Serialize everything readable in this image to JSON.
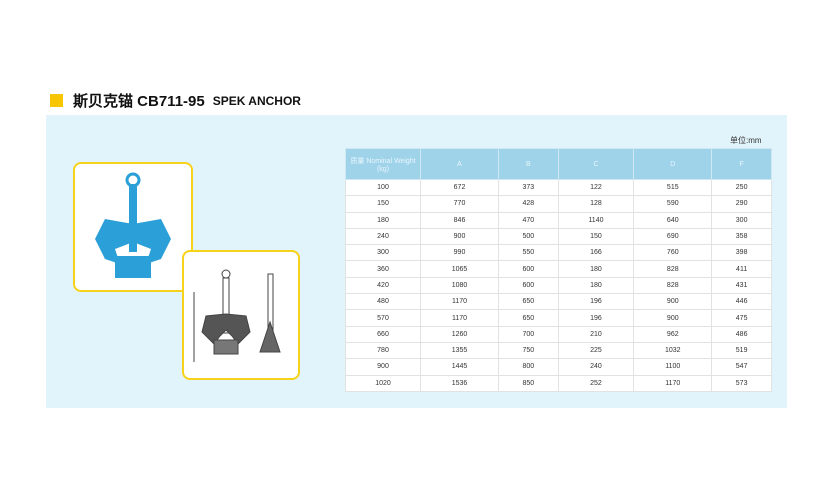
{
  "title": {
    "cn": "斯贝克锚 CB711-95",
    "en": "SPEK ANCHOR"
  },
  "unit": "单位:mm",
  "table": {
    "headers": [
      "质量 Nominal Weight (kg)",
      "A",
      "B",
      "C",
      "D",
      "F"
    ],
    "rows": [
      [
        "100",
        "672",
        "373",
        "122",
        "515",
        "250"
      ],
      [
        "150",
        "770",
        "428",
        "128",
        "590",
        "290"
      ],
      [
        "180",
        "846",
        "470",
        "1140",
        "640",
        "300"
      ],
      [
        "240",
        "900",
        "500",
        "150",
        "690",
        "358"
      ],
      [
        "300",
        "990",
        "550",
        "166",
        "760",
        "398"
      ],
      [
        "360",
        "1065",
        "600",
        "180",
        "828",
        "411"
      ],
      [
        "420",
        "1080",
        "600",
        "180",
        "828",
        "431"
      ],
      [
        "480",
        "1170",
        "650",
        "196",
        "900",
        "446"
      ],
      [
        "570",
        "1170",
        "650",
        "196",
        "900",
        "475"
      ],
      [
        "660",
        "1260",
        "700",
        "210",
        "962",
        "486"
      ],
      [
        "780",
        "1355",
        "750",
        "225",
        "1032",
        "519"
      ],
      [
        "900",
        "1445",
        "800",
        "240",
        "1100",
        "547"
      ],
      [
        "1020",
        "1536",
        "850",
        "252",
        "1170",
        "573"
      ]
    ]
  },
  "colors": {
    "accent": "#f7c600",
    "panel": "#e2f4fb",
    "header": "#9fd3ea",
    "anchor": "#2a9fd8"
  }
}
